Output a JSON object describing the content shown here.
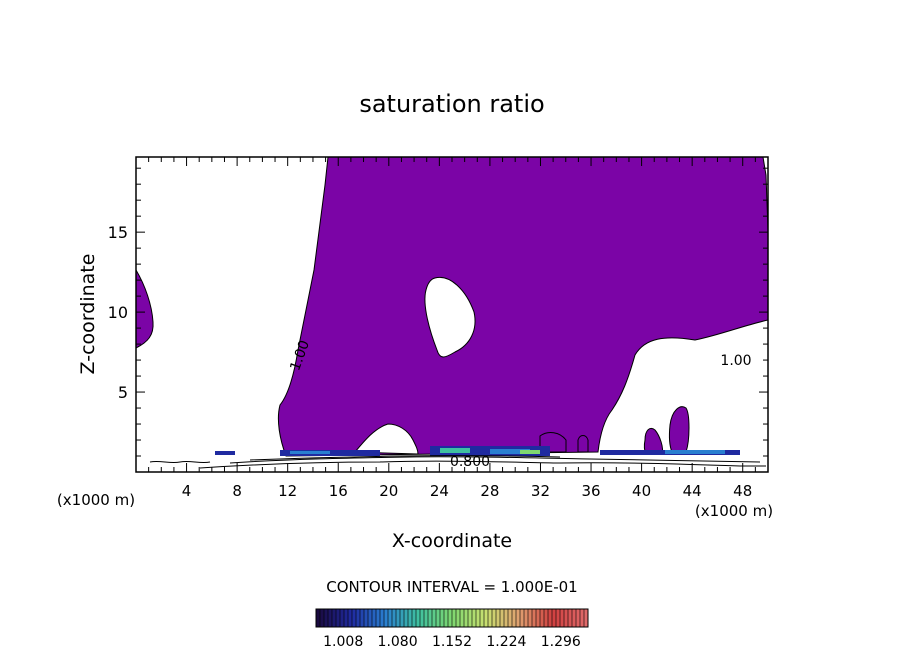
{
  "chart_data": {
    "type": "contour",
    "title": "saturation ratio",
    "xlabel": "X-coordinate",
    "ylabel": "Z-coordinate",
    "x_unit_left": "(x1000 m)",
    "x_unit_right": "(x1000 m)",
    "xlim": [
      0,
      50
    ],
    "ylim": [
      0,
      19.7
    ],
    "xticks": [
      "4",
      "8",
      "12",
      "16",
      "20",
      "24",
      "28",
      "32",
      "36",
      "40",
      "44",
      "48"
    ],
    "yticks": [
      "5",
      "10",
      "15"
    ],
    "contour_labels": [
      "1.00",
      "1.00",
      "0.800"
    ],
    "contour_interval_text": "CONTOUR INTERVAL = 1.000E-01",
    "colorbar_labels": [
      "1.008",
      "1.080",
      "1.152",
      "1.224",
      "1.296"
    ],
    "colorbar_range": [
      0.972,
      1.332
    ],
    "colors": {
      "fill": "#7b04a6",
      "colormap": [
        "#1a0a40",
        "#1f2aa0",
        "#2a7fd0",
        "#3fc0a0",
        "#7fd870",
        "#c8e070",
        "#e0a070",
        "#d04040",
        "#e06a6a"
      ]
    }
  }
}
